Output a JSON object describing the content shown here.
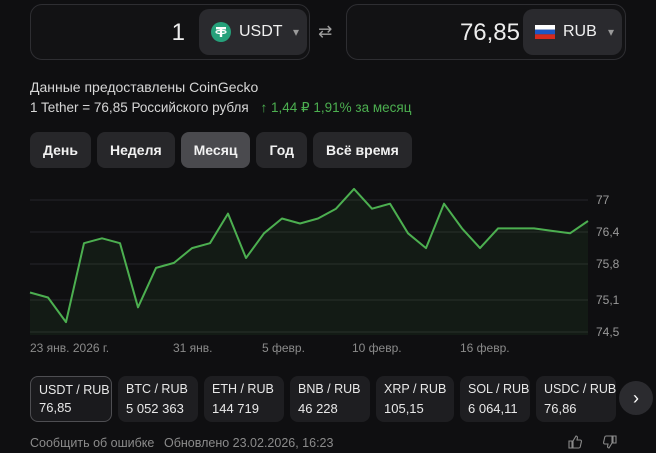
{
  "converter": {
    "from": {
      "amount": "1",
      "currency": "USDT",
      "icon": "tether-icon"
    },
    "to": {
      "amount": "76,85",
      "currency": "RUB",
      "icon": "russia-flag-icon"
    },
    "swap_icon": "swap-arrows-icon"
  },
  "source_text": "Данные предоставлены CoinGecko",
  "rate": {
    "text": "1 Tether = 76,85 Российского рубля",
    "change": "↑ 1,44 ₽  1,91%  за месяц",
    "change_color": "#4caf50"
  },
  "periods": [
    {
      "label": "День",
      "active": false
    },
    {
      "label": "Неделя",
      "active": false
    },
    {
      "label": "Месяц",
      "active": true
    },
    {
      "label": "Год",
      "active": false
    },
    {
      "label": "Всё время",
      "active": false
    }
  ],
  "chart_data": {
    "type": "area",
    "x_ticks": [
      "23 янв. 2026 г.",
      "31 янв.",
      "5 февр.",
      "10 февр.",
      "16 февр."
    ],
    "y_ticks": [
      "77",
      "76,4",
      "75,8",
      "75,1",
      "74,5"
    ],
    "ylim": [
      74.5,
      77.0
    ],
    "line_color": "#4caf50",
    "values": [
      75.3,
      75.2,
      74.7,
      76.3,
      76.4,
      76.3,
      75.0,
      75.8,
      75.9,
      76.2,
      76.3,
      76.9,
      76.0,
      76.5,
      76.8,
      76.7,
      76.8,
      77.0,
      77.4,
      77.0,
      77.1,
      76.5,
      76.2,
      77.1,
      76.6,
      76.2,
      76.6,
      76.6,
      76.6,
      76.55,
      76.5,
      76.75
    ]
  },
  "pairs": [
    {
      "name": "USDT / RUB",
      "value": "76,85",
      "active": true
    },
    {
      "name": "BTC / RUB",
      "value": "5 052 363",
      "active": false
    },
    {
      "name": "ETH / RUB",
      "value": "144 719",
      "active": false
    },
    {
      "name": "BNB / RUB",
      "value": "46 228",
      "active": false
    },
    {
      "name": "XRP / RUB",
      "value": "105,15",
      "active": false
    },
    {
      "name": "SOL / RUB",
      "value": "6 064,11",
      "active": false
    },
    {
      "name": "USDC / RUB",
      "value": "76,86",
      "active": false
    }
  ],
  "footer": {
    "report": "Сообщить об ошибке",
    "updated": "Обновлено 23.02.2026, 16:23"
  }
}
